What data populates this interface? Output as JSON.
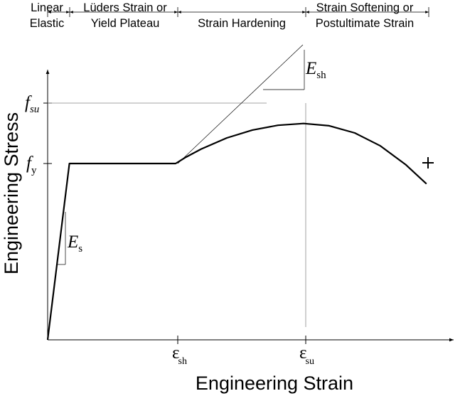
{
  "chart_data": {
    "type": "line",
    "title": "",
    "xlabel": "Engineering Strain",
    "ylabel": "Engineering Stress",
    "grid": false,
    "legend": "none",
    "regions": [
      {
        "lines": [
          "Linear",
          "Elastic"
        ]
      },
      {
        "lines": [
          "Lüders Strain or",
          "Yield Plateau"
        ]
      },
      {
        "lines": [
          "Strain Hardening"
        ]
      },
      {
        "lines": [
          "Strain Softening or",
          "Postultimate Strain"
        ]
      }
    ],
    "y_ticks": [
      {
        "base": "f",
        "sub": "su"
      },
      {
        "base": "f",
        "sub": "y"
      }
    ],
    "x_ticks": [
      {
        "base": "ε",
        "sub": "sh"
      },
      {
        "base": "ε",
        "sub": "su"
      }
    ],
    "annotations": [
      {
        "base": "E",
        "sub": "sh"
      },
      {
        "base": "E",
        "sub": "s"
      }
    ],
    "curve": {
      "x": [
        0,
        0.17,
        1,
        1.08,
        1.2,
        1.4,
        1.6,
        1.8,
        2,
        2.2,
        2.4,
        2.6,
        2.8,
        2.96
      ],
      "y": [
        0,
        0.78,
        0.78,
        0.808,
        0.844,
        0.893,
        0.928,
        0.949,
        0.957,
        0.947,
        0.915,
        0.858,
        0.774,
        0.69
      ]
    },
    "xlim": [
      0,
      3.2
    ],
    "ylim": [
      0,
      1.25
    ]
  }
}
